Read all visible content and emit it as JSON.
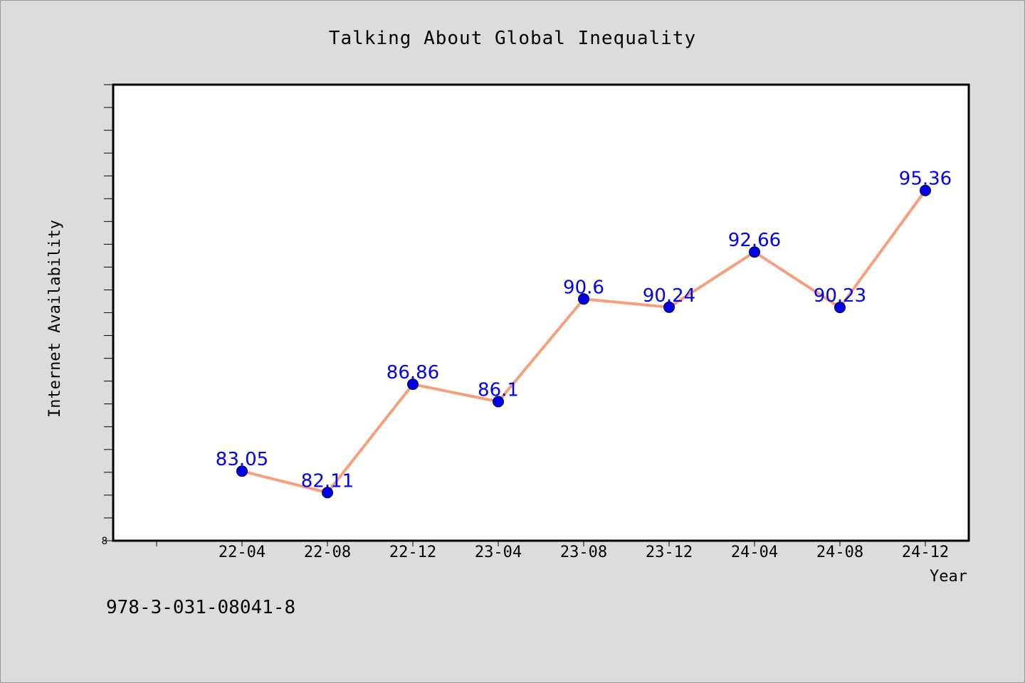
{
  "chart_data": {
    "type": "line",
    "title": "Talking About Global Inequality",
    "xlabel": "Year",
    "ylabel": "Internet Availability",
    "categories": [
      "22-04",
      "22-08",
      "22-12",
      "23-04",
      "23-08",
      "23-12",
      "24-04",
      "24-08",
      "24-12"
    ],
    "series": [
      {
        "values": [
          83.05,
          82.11,
          86.86,
          86.1,
          90.6,
          90.24,
          92.66,
          90.23,
          95.36
        ]
      }
    ],
    "data_labels": [
      "83.05",
      "82.11",
      "86.86",
      "86.1",
      "90.6",
      "90.24",
      "92.66",
      "90.23",
      "95.36"
    ],
    "ylim": [
      80,
      100
    ],
    "y_tick_labels": [
      "8"
    ],
    "grid": false,
    "legend": "none",
    "colors": {
      "line": "#f4a07f",
      "marker": "#0000ee",
      "data_label": "#0000ee",
      "plot_background": "#ffffff",
      "figure_background": "#dcdcdc"
    }
  },
  "footer": {
    "isbn": "978-3-031-08041-8"
  }
}
